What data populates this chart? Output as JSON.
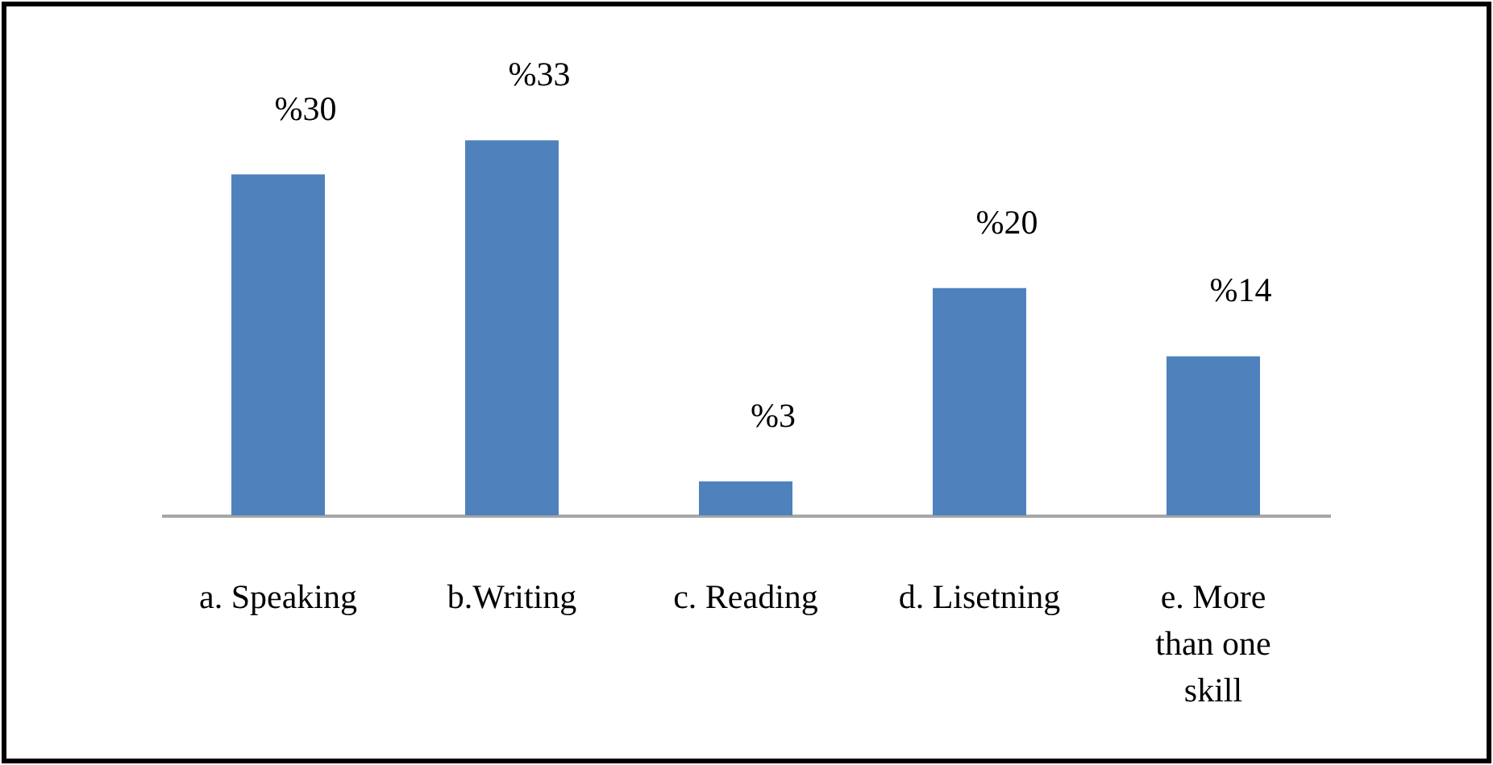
{
  "chart_data": {
    "type": "bar",
    "categories": [
      "a. Speaking",
      "b.Writing",
      "c. Reading",
      "d. Lisetning",
      "e. More than one skill"
    ],
    "values": [
      30,
      33,
      3,
      20,
      14
    ],
    "value_labels": [
      "%30",
      "%33",
      "%3",
      "%20",
      "%14"
    ],
    "color": "#4f81bd"
  }
}
